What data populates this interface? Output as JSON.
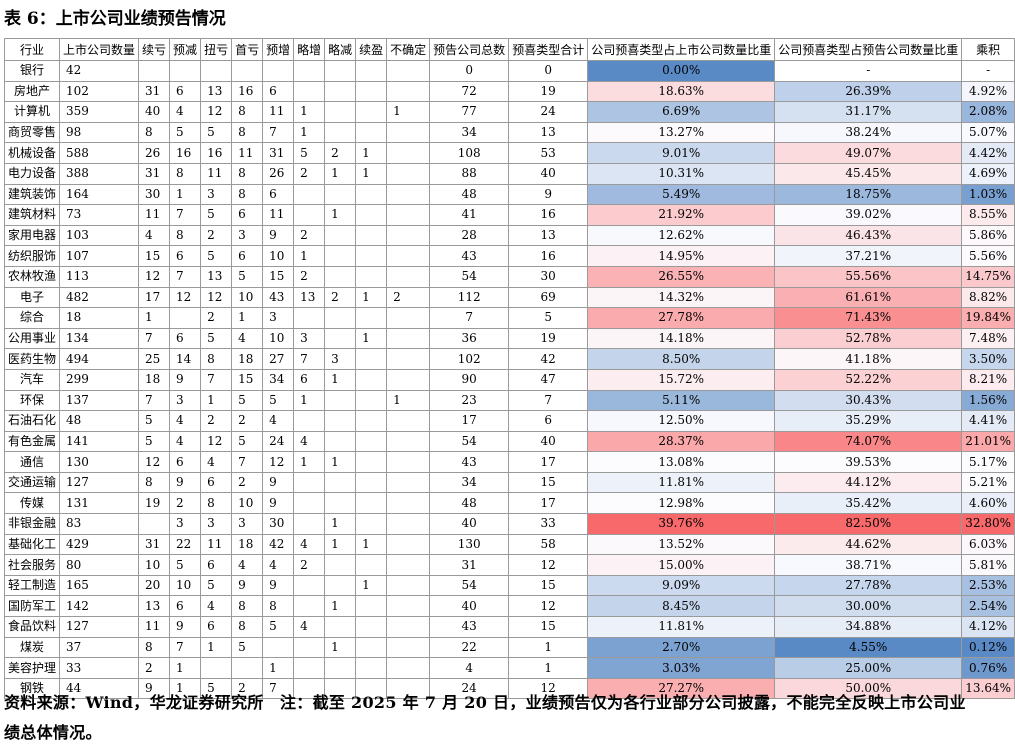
{
  "title": "表 6：上市公司业绩预告情况",
  "table": {
    "headers": [
      "行业",
      "上市公司数量",
      "续亏",
      "预减",
      "扭亏",
      "首亏",
      "预增",
      "略增",
      "略减",
      "续盈",
      "不确定",
      "预告公司总数",
      "预喜类型合计",
      "公司预喜类型占上市公司数量比重",
      "公司预喜类型占预告公司数量比重",
      "乘积"
    ],
    "rows": [
      [
        "银行",
        42,
        null,
        null,
        null,
        null,
        null,
        null,
        null,
        null,
        null,
        0,
        0,
        "0.00%",
        "-",
        "-"
      ],
      [
        "房地产",
        102,
        31,
        6,
        13,
        16,
        6,
        null,
        null,
        null,
        null,
        72,
        19,
        "18.63%",
        "26.39%",
        "4.92%"
      ],
      [
        "计算机",
        359,
        40,
        4,
        12,
        8,
        11,
        1,
        null,
        null,
        1,
        77,
        24,
        "6.69%",
        "31.17%",
        "2.08%"
      ],
      [
        "商贸零售",
        98,
        8,
        5,
        5,
        8,
        7,
        1,
        null,
        null,
        null,
        34,
        13,
        "13.27%",
        "38.24%",
        "5.07%"
      ],
      [
        "机械设备",
        588,
        26,
        16,
        16,
        11,
        31,
        5,
        2,
        1,
        null,
        108,
        53,
        "9.01%",
        "49.07%",
        "4.42%"
      ],
      [
        "电力设备",
        388,
        31,
        8,
        11,
        8,
        26,
        2,
        1,
        1,
        null,
        88,
        40,
        "10.31%",
        "45.45%",
        "4.69%"
      ],
      [
        "建筑装饰",
        164,
        30,
        1,
        3,
        8,
        6,
        null,
        null,
        null,
        null,
        48,
        9,
        "5.49%",
        "18.75%",
        "1.03%"
      ],
      [
        "建筑材料",
        73,
        11,
        7,
        5,
        6,
        11,
        null,
        1,
        null,
        null,
        41,
        16,
        "21.92%",
        "39.02%",
        "8.55%"
      ],
      [
        "家用电器",
        103,
        4,
        8,
        2,
        3,
        9,
        2,
        null,
        null,
        null,
        28,
        13,
        "12.62%",
        "46.43%",
        "5.86%"
      ],
      [
        "纺织服饰",
        107,
        15,
        6,
        5,
        6,
        10,
        1,
        null,
        null,
        null,
        43,
        16,
        "14.95%",
        "37.21%",
        "5.56%"
      ],
      [
        "农林牧渔",
        113,
        12,
        7,
        13,
        5,
        15,
        2,
        null,
        null,
        null,
        54,
        30,
        "26.55%",
        "55.56%",
        "14.75%"
      ],
      [
        "电子",
        482,
        17,
        12,
        12,
        10,
        43,
        13,
        2,
        1,
        2,
        112,
        69,
        "14.32%",
        "61.61%",
        "8.82%"
      ],
      [
        "综合",
        18,
        1,
        null,
        2,
        1,
        3,
        null,
        null,
        null,
        null,
        7,
        5,
        "27.78%",
        "71.43%",
        "19.84%"
      ],
      [
        "公用事业",
        134,
        7,
        6,
        5,
        4,
        10,
        3,
        null,
        1,
        null,
        36,
        19,
        "14.18%",
        "52.78%",
        "7.48%"
      ],
      [
        "医药生物",
        494,
        25,
        14,
        8,
        18,
        27,
        7,
        3,
        null,
        null,
        102,
        42,
        "8.50%",
        "41.18%",
        "3.50%"
      ],
      [
        "汽车",
        299,
        18,
        9,
        7,
        15,
        34,
        6,
        1,
        null,
        null,
        90,
        47,
        "15.72%",
        "52.22%",
        "8.21%"
      ],
      [
        "环保",
        137,
        7,
        3,
        1,
        5,
        5,
        1,
        null,
        null,
        1,
        23,
        7,
        "5.11%",
        "30.43%",
        "1.56%"
      ],
      [
        "石油石化",
        48,
        5,
        4,
        2,
        2,
        4,
        null,
        null,
        null,
        null,
        17,
        6,
        "12.50%",
        "35.29%",
        "4.41%"
      ],
      [
        "有色金属",
        141,
        5,
        4,
        12,
        5,
        24,
        4,
        null,
        null,
        null,
        54,
        40,
        "28.37%",
        "74.07%",
        "21.01%"
      ],
      [
        "通信",
        130,
        12,
        6,
        4,
        7,
        12,
        1,
        1,
        null,
        null,
        43,
        17,
        "13.08%",
        "39.53%",
        "5.17%"
      ],
      [
        "交通运输",
        127,
        8,
        9,
        6,
        2,
        9,
        null,
        null,
        null,
        null,
        34,
        15,
        "11.81%",
        "44.12%",
        "5.21%"
      ],
      [
        "传媒",
        131,
        19,
        2,
        8,
        10,
        9,
        null,
        null,
        null,
        null,
        48,
        17,
        "12.98%",
        "35.42%",
        "4.60%"
      ],
      [
        "非银金融",
        83,
        null,
        3,
        3,
        3,
        30,
        null,
        1,
        null,
        null,
        40,
        33,
        "39.76%",
        "82.50%",
        "32.80%"
      ],
      [
        "基础化工",
        429,
        31,
        22,
        11,
        18,
        42,
        4,
        1,
        1,
        null,
        130,
        58,
        "13.52%",
        "44.62%",
        "6.03%"
      ],
      [
        "社会服务",
        80,
        10,
        5,
        6,
        4,
        4,
        2,
        null,
        null,
        null,
        31,
        12,
        "15.00%",
        "38.71%",
        "5.81%"
      ],
      [
        "轻工制造",
        165,
        20,
        10,
        5,
        9,
        9,
        null,
        null,
        1,
        null,
        54,
        15,
        "9.09%",
        "27.78%",
        "2.53%"
      ],
      [
        "国防军工",
        142,
        13,
        6,
        4,
        8,
        8,
        null,
        1,
        null,
        null,
        40,
        12,
        "8.45%",
        "30.00%",
        "2.54%"
      ],
      [
        "食品饮料",
        127,
        11,
        9,
        6,
        8,
        5,
        4,
        null,
        null,
        null,
        43,
        15,
        "11.81%",
        "34.88%",
        "4.12%"
      ],
      [
        "煤炭",
        37,
        8,
        7,
        1,
        5,
        null,
        null,
        1,
        null,
        null,
        22,
        1,
        "2.70%",
        "4.55%",
        "0.12%"
      ],
      [
        "美容护理",
        33,
        2,
        1,
        null,
        null,
        1,
        null,
        null,
        null,
        null,
        4,
        1,
        "3.03%",
        "25.00%",
        "0.76%"
      ],
      [
        "钢铁",
        44,
        9,
        1,
        5,
        2,
        7,
        null,
        null,
        null,
        null,
        24,
        12,
        "27.27%",
        "50.00%",
        "13.64%"
      ]
    ]
  },
  "note": "资料来源：Wind，华龙证券研究所　注：截至 2025 年 7 月 20 日，业绩预告仅为各行业部分公司披露，不能完全反映上市公司业绩总体情况。"
}
